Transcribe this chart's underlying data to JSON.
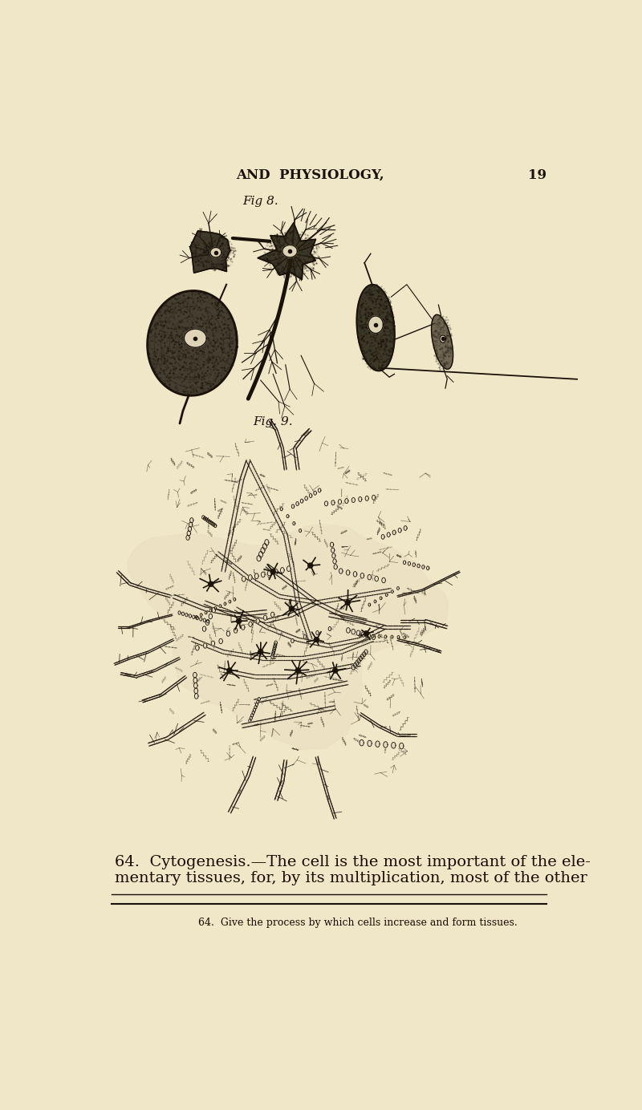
{
  "page_bg": "#f0e6c8",
  "ink_color": "#1a1208",
  "header_text": "AND  PHYSIOLOGY,",
  "header_page_num": "19",
  "fig8_label": "Fig 8.",
  "fig9_label": "Fig. 9.",
  "main_text_line1": "64.  Cytogenesis.—The cell is the most important of the ele-",
  "main_text_line2": "mentary tissues, for, by its multiplication, most of the other",
  "footer_text": "64.  Give the process by which cells increase and form tissues.",
  "header_fontsize": 12,
  "fig_label_fontsize": 11,
  "main_text_fontsize": 14,
  "footer_fontsize": 9
}
